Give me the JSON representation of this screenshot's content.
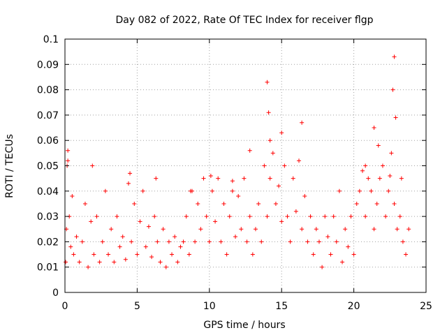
{
  "chart_data": {
    "type": "scatter",
    "title": "Day 082 of 2022, Rate Of TEC Index for receiver flgp",
    "xlabel": "GPS time / hours",
    "ylabel": "ROTI / TECUs",
    "xlim": [
      0,
      25
    ],
    "ylim": [
      0,
      0.1
    ],
    "grid": true,
    "marker": "+",
    "marker_color": "#ff0000",
    "x_ticks": [
      "0",
      "5",
      "10",
      "15",
      "20",
      "25"
    ],
    "y_ticks": [
      "0",
      "0.01",
      "0.02",
      "0.03",
      "0.04",
      "0.05",
      "0.06",
      "0.07",
      "0.08",
      "0.09",
      "0.1"
    ],
    "series": [
      {
        "name": "ROTI",
        "x": [
          0.05,
          0.1,
          0.15,
          0.2,
          0.3,
          0.4,
          0.5,
          0.6,
          0.8,
          1.0,
          1.2,
          1.4,
          1.6,
          1.8,
          2.0,
          2.2,
          2.4,
          2.6,
          2.8,
          3.0,
          3.2,
          3.4,
          3.6,
          3.8,
          4.0,
          4.2,
          4.4,
          4.6,
          4.8,
          5.0,
          5.2,
          5.4,
          5.6,
          5.8,
          6.0,
          6.2,
          6.4,
          6.6,
          6.8,
          7.0,
          7.2,
          7.4,
          7.6,
          7.8,
          8.0,
          8.2,
          8.4,
          8.6,
          8.8,
          9.0,
          9.2,
          9.4,
          9.6,
          9.8,
          10.0,
          10.2,
          10.4,
          10.6,
          10.8,
          11.0,
          11.2,
          11.4,
          11.6,
          11.8,
          12.0,
          12.2,
          12.4,
          12.6,
          12.8,
          13.0,
          13.2,
          13.4,
          13.6,
          13.8,
          14.0,
          14.2,
          14.4,
          14.6,
          14.8,
          15.0,
          15.2,
          15.4,
          15.6,
          15.8,
          16.0,
          16.2,
          16.4,
          16.6,
          16.8,
          17.0,
          17.2,
          17.4,
          17.6,
          17.8,
          18.0,
          18.2,
          18.4,
          18.6,
          18.8,
          19.0,
          19.2,
          19.4,
          19.6,
          19.8,
          20.0,
          20.2,
          20.4,
          20.6,
          20.8,
          21.0,
          21.2,
          21.4,
          21.6,
          21.8,
          22.0,
          22.2,
          22.4,
          22.6,
          22.8,
          23.0,
          23.2,
          23.4,
          23.6,
          23.8,
          0.2,
          1.9,
          4.5,
          6.3,
          8.7,
          10.1,
          11.6,
          12.8,
          14.0,
          14.1,
          14.2,
          15.0,
          16.4,
          20.8,
          21.4,
          21.7,
          22.5,
          22.7,
          22.8,
          22.9,
          23.3
        ],
        "values": [
          0.012,
          0.025,
          0.05,
          0.056,
          0.03,
          0.018,
          0.038,
          0.015,
          0.022,
          0.012,
          0.02,
          0.035,
          0.01,
          0.028,
          0.015,
          0.03,
          0.012,
          0.02,
          0.04,
          0.015,
          0.025,
          0.012,
          0.03,
          0.018,
          0.022,
          0.013,
          0.043,
          0.02,
          0.035,
          0.015,
          0.028,
          0.04,
          0.018,
          0.026,
          0.014,
          0.03,
          0.02,
          0.012,
          0.025,
          0.01,
          0.02,
          0.015,
          0.022,
          0.012,
          0.018,
          0.02,
          0.03,
          0.015,
          0.04,
          0.02,
          0.035,
          0.025,
          0.045,
          0.03,
          0.02,
          0.04,
          0.028,
          0.045,
          0.02,
          0.035,
          0.015,
          0.03,
          0.04,
          0.022,
          0.038,
          0.025,
          0.045,
          0.02,
          0.03,
          0.015,
          0.025,
          0.035,
          0.02,
          0.05,
          0.03,
          0.045,
          0.055,
          0.035,
          0.042,
          0.028,
          0.05,
          0.03,
          0.02,
          0.045,
          0.032,
          0.052,
          0.025,
          0.038,
          0.02,
          0.03,
          0.015,
          0.025,
          0.02,
          0.01,
          0.03,
          0.022,
          0.015,
          0.03,
          0.02,
          0.04,
          0.012,
          0.025,
          0.018,
          0.03,
          0.015,
          0.035,
          0.04,
          0.048,
          0.03,
          0.045,
          0.04,
          0.025,
          0.035,
          0.045,
          0.05,
          0.03,
          0.04,
          0.055,
          0.035,
          0.025,
          0.03,
          0.02,
          0.015,
          0.025,
          0.052,
          0.05,
          0.047,
          0.045,
          0.04,
          0.046,
          0.044,
          0.056,
          0.083,
          0.071,
          0.06,
          0.063,
          0.067,
          0.05,
          0.065,
          0.058,
          0.046,
          0.08,
          0.093,
          0.069,
          0.045
        ]
      }
    ]
  }
}
